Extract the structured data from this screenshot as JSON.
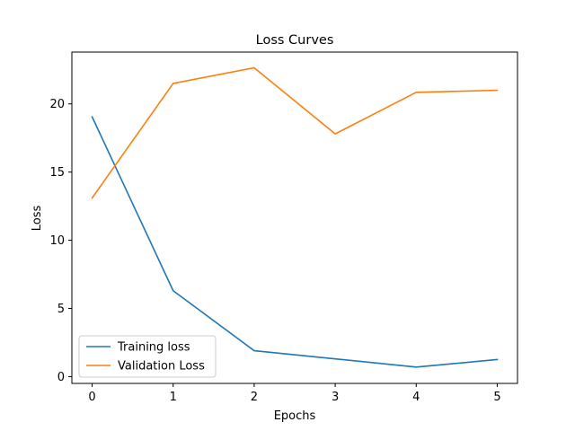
{
  "chart_data": {
    "type": "line",
    "title": "Loss Curves",
    "xlabel": "Epochs",
    "ylabel": "Loss",
    "x": [
      0,
      1,
      2,
      3,
      4,
      5
    ],
    "xlim": [
      -0.25,
      5.25
    ],
    "ylim": [
      -0.5,
      23.8
    ],
    "xticks": [
      0,
      1,
      2,
      3,
      4,
      5
    ],
    "yticks": [
      0,
      5,
      10,
      15,
      20
    ],
    "grid": false,
    "legend_position": "lower-left",
    "series": [
      {
        "name": "Training loss",
        "color": "#1f77b4",
        "values": [
          19.05,
          6.3,
          1.9,
          1.3,
          0.7,
          1.25
        ]
      },
      {
        "name": "Validation Loss",
        "color": "#ff7f0e",
        "values": [
          13.1,
          21.5,
          22.65,
          17.8,
          20.85,
          21.0
        ]
      }
    ]
  }
}
